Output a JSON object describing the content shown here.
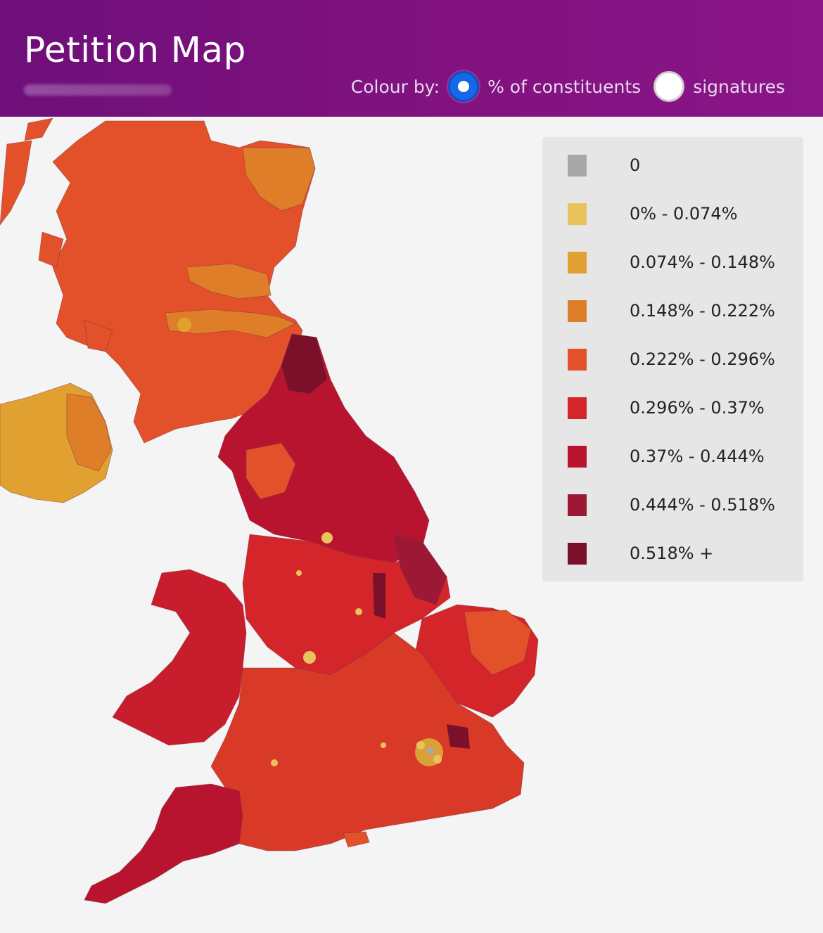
{
  "header": {
    "title": "Petition Map",
    "colour_by_label": "Colour by:",
    "options": [
      {
        "label": "% of constituents",
        "selected": true
      },
      {
        "label": "signatures",
        "selected": false
      }
    ]
  },
  "colors": {
    "header_bg": "#7d1180",
    "radio_selected": "#1668e8",
    "legend_bg": "#e6e6e6"
  },
  "legend": {
    "items": [
      {
        "label": "0",
        "color": "#a8a8a8"
      },
      {
        "label": "0% - 0.074%",
        "color": "#e8c35c"
      },
      {
        "label": "0.074% - 0.148%",
        "color": "#e0a131"
      },
      {
        "label": "0.148% - 0.222%",
        "color": "#df7e29"
      },
      {
        "label": "0.222% - 0.296%",
        "color": "#e2512a"
      },
      {
        "label": "0.296% - 0.37%",
        "color": "#d4262a"
      },
      {
        "label": "0.37% - 0.444%",
        "color": "#b8142f"
      },
      {
        "label": "0.444% - 0.518%",
        "color": "#9c1834"
      },
      {
        "label": "0.518% +",
        "color": "#7a1029"
      }
    ]
  },
  "map": {
    "regions": [
      {
        "name": "scotland",
        "color": "#e2512a"
      },
      {
        "name": "northern-ireland",
        "color": "#e0a131"
      },
      {
        "name": "north-england",
        "color": "#b8142f"
      },
      {
        "name": "midlands",
        "color": "#d4262a"
      },
      {
        "name": "wales",
        "color": "#c81d2c"
      },
      {
        "name": "south-england",
        "color": "#d93a28"
      },
      {
        "name": "east-anglia",
        "color": "#d4262a"
      }
    ]
  }
}
